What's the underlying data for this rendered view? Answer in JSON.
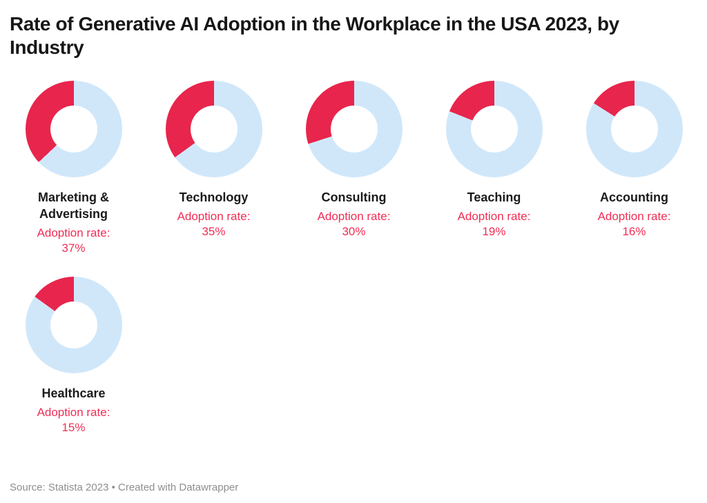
{
  "title": "Rate of Generative AI Adoption in the Workplace in the USA 2023, by Industry",
  "footer": {
    "text": "Source: Statista 2023 • Created with Datawrapper"
  },
  "colors": {
    "adopted_slice": "#e8254c",
    "remainder_slice": "#d0e7fa",
    "rate_text": "#f02d55",
    "title_text": "#171717",
    "footer_text": "#8e8e8e",
    "background": "#ffffff"
  },
  "chart_data": {
    "type": "pie",
    "subtype": "donut-small-multiples",
    "title": "Rate of Generative AI Adoption in the Workplace in the USA 2023, by Industry",
    "value_label_prefix": "Adoption rate:",
    "unit": "%",
    "categories": [
      "Marketing & Advertising",
      "Technology",
      "Consulting",
      "Teaching",
      "Accounting",
      "Healthcare"
    ],
    "values": [
      37,
      35,
      30,
      19,
      16,
      15
    ],
    "start_angle_deg": 0,
    "direction": "counterclockwise",
    "hole_ratio": 0.49,
    "legend": "none",
    "grid": "off",
    "columns_per_row": 5
  }
}
